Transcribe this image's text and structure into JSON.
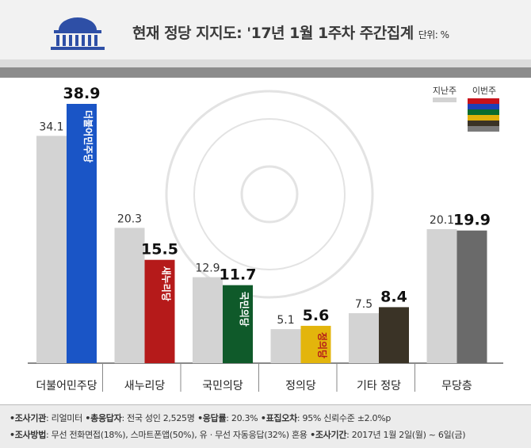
{
  "header": {
    "title": "현재 정당 지지도: '17년 1월 1주차 주간집계",
    "unit": "단위: %"
  },
  "legend": {
    "prev": "지난주",
    "curr": "이번주"
  },
  "chart_data": {
    "type": "bar",
    "categories": [
      "더불어민주당",
      "새누리당",
      "국민의당",
      "정의당",
      "기타 정당",
      "무당층"
    ],
    "series": [
      {
        "name": "지난주",
        "values": [
          34.1,
          20.3,
          12.9,
          5.1,
          7.5,
          20.1
        ]
      },
      {
        "name": "이번주",
        "values": [
          38.9,
          15.5,
          11.7,
          5.6,
          8.4,
          19.9
        ]
      }
    ],
    "bar_inner_labels": [
      "더불어민주당",
      "새누리당",
      "국민의당",
      "정의당",
      "",
      ""
    ],
    "colors": {
      "prev": "#d3d3d3",
      "curr": [
        "#1a55c6",
        "#b51a1a",
        "#0f5a2a",
        "#e3b50c",
        "#3a3326",
        "#6a6a6a"
      ]
    },
    "ylim": [
      0,
      42
    ]
  },
  "footer": {
    "line1": [
      {
        "label": "•조사기관",
        "value": ": 리얼미터"
      },
      {
        "label": " •총응답자",
        "value": ": 전국 성인 2,525명"
      },
      {
        "label": " •응답률",
        "value": ": 20.3%"
      },
      {
        "label": " •표집오차",
        "value": ": 95% 신뢰수준 ±2.0%p"
      }
    ],
    "line2": [
      {
        "label": "•조사방법",
        "value": ": 무선 전화면접(18%), 스마트폰앱(50%), 유 · 무선 자동응답(32%) 혼용"
      },
      {
        "label": " •조사기간",
        "value": ": 2017년 1월 2일(월) ~ 6일(금)"
      }
    ]
  }
}
